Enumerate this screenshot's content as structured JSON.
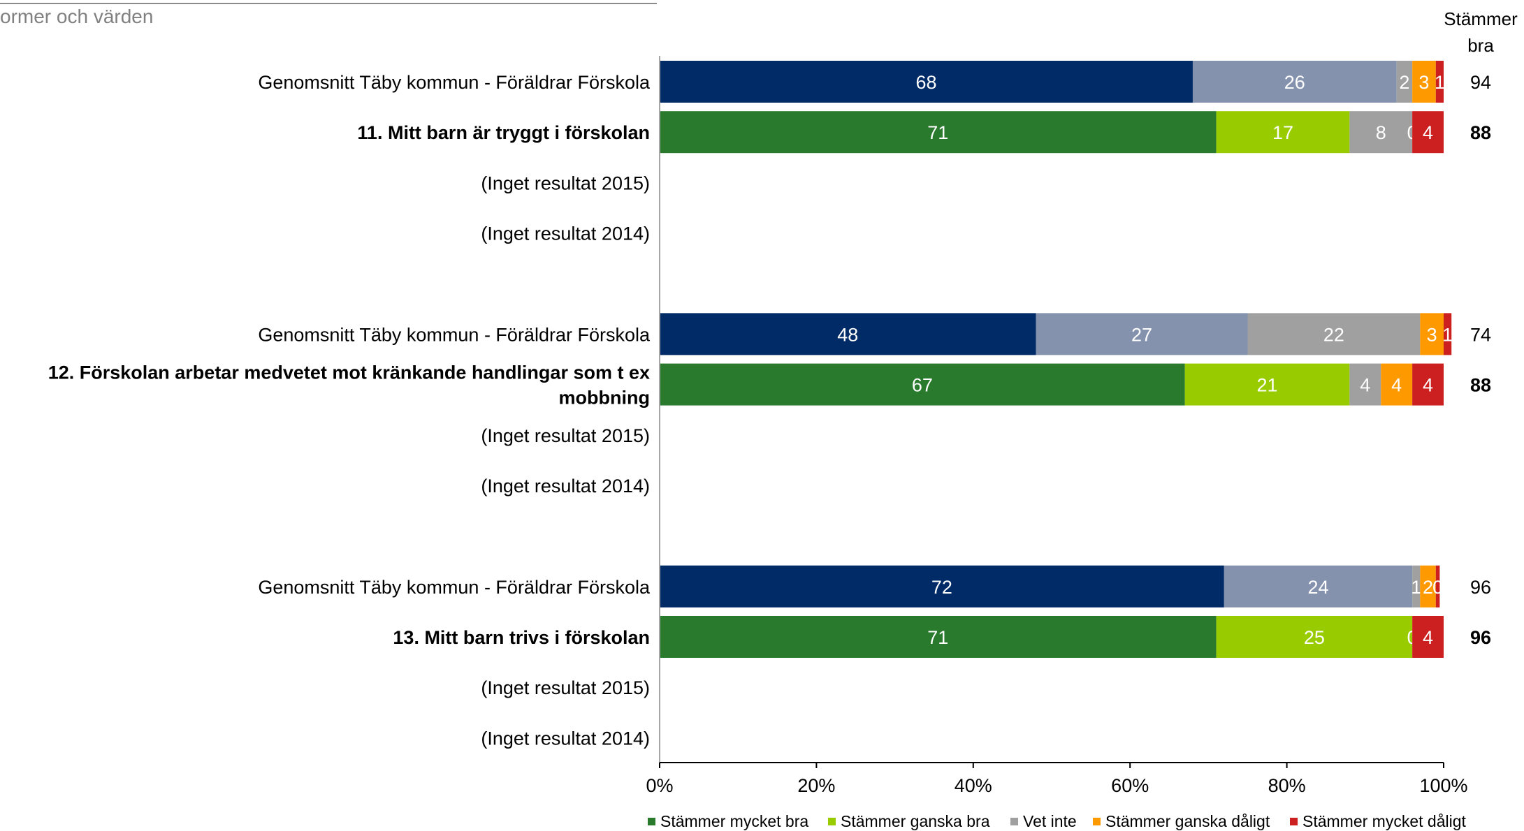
{
  "section_title": "ormer och värden",
  "chart_data": {
    "type": "bar",
    "orientation": "horizontal",
    "stacked": true,
    "xlim": [
      0,
      100
    ],
    "x_ticks": [
      "0%",
      "20%",
      "40%",
      "60%",
      "80%",
      "100%"
    ],
    "right_column_header": [
      "Stämmer",
      "bra"
    ],
    "legend_position": "bottom",
    "legend": [
      {
        "name": "Stämmer mycket bra",
        "color": "#2a7a2e"
      },
      {
        "name": "Stämmer ganska bra",
        "color": "#99cc00"
      },
      {
        "name": "Vet inte",
        "color": "#a0a0a0"
      },
      {
        "name": "Stämmer ganska dåligt",
        "color": "#ff9900"
      },
      {
        "name": "Stämmer mycket dåligt",
        "color": "#cc1f1f"
      }
    ],
    "avg_colors": [
      "#002b66",
      "#8592ad",
      "#a0a0a0",
      "#ff9900",
      "#cc1f1f"
    ],
    "rows": [
      {
        "label": "Genomsnitt Täby kommun - Föräldrar Förskola",
        "kind": "avg",
        "values": [
          68,
          26,
          2,
          3,
          1
        ],
        "labels": [
          "68",
          "26",
          "2",
          "3",
          "1"
        ],
        "total": "94"
      },
      {
        "label": "11. Mitt barn är tryggt i förskolan",
        "kind": "main",
        "values": [
          71,
          17,
          8,
          0,
          4
        ],
        "labels": [
          "71",
          "17",
          "8",
          "0",
          "4"
        ],
        "total": "88"
      },
      {
        "label": "(Inget resultat 2015)",
        "kind": "empty"
      },
      {
        "label": "(Inget resultat 2014)",
        "kind": "empty"
      },
      {
        "label": "Genomsnitt Täby kommun - Föräldrar Förskola",
        "kind": "avg",
        "values": [
          48,
          27,
          22,
          3,
          1
        ],
        "labels": [
          "48",
          "27",
          "22",
          "3",
          "1"
        ],
        "total": "74"
      },
      {
        "label": [
          "12. Förskolan arbetar medvetet mot kränkande handlingar som t ex",
          "mobbning"
        ],
        "kind": "main",
        "values": [
          67,
          21,
          4,
          4,
          4
        ],
        "labels": [
          "67",
          "21",
          "4",
          "4",
          "4"
        ],
        "total": "88"
      },
      {
        "label": "(Inget resultat 2015)",
        "kind": "empty"
      },
      {
        "label": "(Inget resultat 2014)",
        "kind": "empty"
      },
      {
        "label": "Genomsnitt Täby kommun - Föräldrar Förskola",
        "kind": "avg",
        "values": [
          72,
          24,
          1,
          2,
          0.5
        ],
        "labels": [
          "72",
          "24",
          "1",
          "2",
          "0"
        ],
        "total": "96"
      },
      {
        "label": "13. Mitt barn trivs i förskolan",
        "kind": "main",
        "values": [
          71,
          25,
          0,
          0,
          4
        ],
        "labels": [
          "71",
          "25",
          "",
          "0",
          "4"
        ],
        "total": "96"
      },
      {
        "label": "(Inget resultat 2015)",
        "kind": "empty"
      },
      {
        "label": "(Inget resultat 2014)",
        "kind": "empty"
      }
    ]
  }
}
